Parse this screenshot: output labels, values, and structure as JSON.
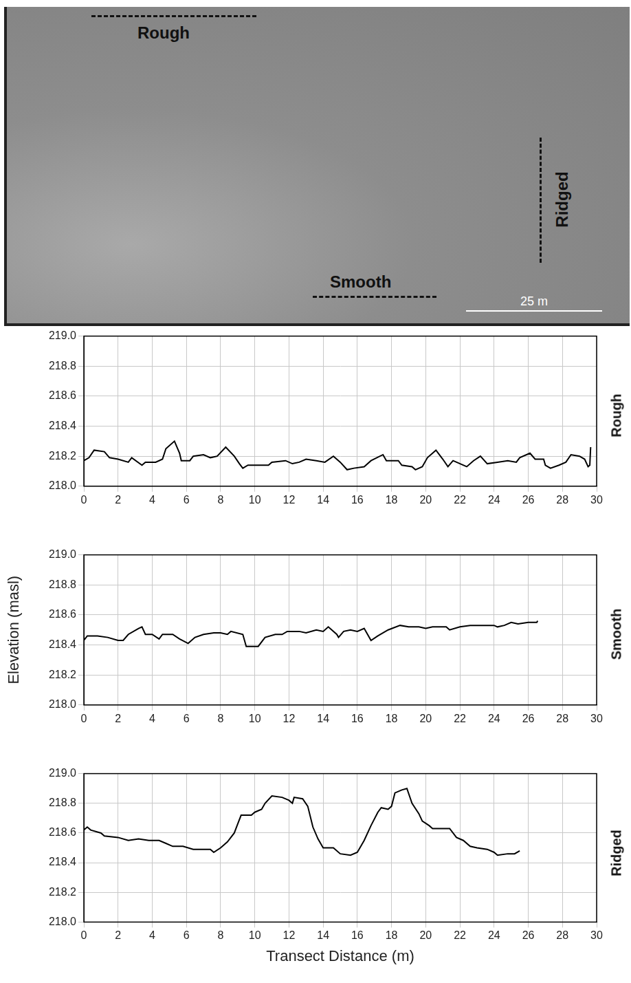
{
  "image": {
    "labels": [
      "Rough",
      "Smooth",
      "Ridged"
    ],
    "scale_bar": "25 m"
  },
  "chart_data": [
    {
      "type": "line",
      "panel_label": "Rough",
      "color": "#000000",
      "grid": true,
      "xlim": [
        0,
        30
      ],
      "xticks": [
        0,
        2,
        4,
        6,
        8,
        10,
        12,
        14,
        16,
        18,
        20,
        22,
        24,
        26,
        28,
        30
      ],
      "ylim": [
        218,
        219
      ],
      "yticks": [
        {
          "value": 218,
          "label": "218.0"
        },
        218.2,
        218.4,
        218.6,
        218.8,
        {
          "value": 219,
          "label": "219.0"
        }
      ],
      "x": [
        0,
        0.3,
        0.6,
        1.2,
        1.5,
        2,
        2.6,
        2.8,
        3.4,
        3.6,
        4.2,
        4.6,
        4.8,
        5.3,
        5.6,
        5.7,
        6.2,
        6.4,
        7,
        7.4,
        7.8,
        8.3,
        8.8,
        9.1,
        9.3,
        9.6,
        10.2,
        10.8,
        11,
        11.8,
        12.2,
        12.6,
        13,
        13.6,
        14.1,
        14.6,
        15,
        15.4,
        15.8,
        16.4,
        16.8,
        17.5,
        17.7,
        18.4,
        18.6,
        19.2,
        19.4,
        19.8,
        20.1,
        20.6,
        21,
        21.3,
        21.6,
        22.4,
        22.8,
        23.2,
        23.6,
        24.2,
        24.8,
        25.3,
        25.5,
        26.1,
        26.4,
        26.9,
        27,
        27.3,
        27.8,
        28.2,
        28.5,
        29,
        29.3,
        29.5,
        29.6,
        29.65
      ],
      "values": [
        218.17,
        218.19,
        218.24,
        218.23,
        218.19,
        218.18,
        218.16,
        218.19,
        218.14,
        218.16,
        218.16,
        218.18,
        218.25,
        218.3,
        218.22,
        218.17,
        218.17,
        218.2,
        218.21,
        218.19,
        218.2,
        218.26,
        218.2,
        218.15,
        218.12,
        218.14,
        218.14,
        218.14,
        218.16,
        218.17,
        218.15,
        218.16,
        218.18,
        218.17,
        218.16,
        218.2,
        218.16,
        218.11,
        218.12,
        218.13,
        218.17,
        218.21,
        218.17,
        218.17,
        218.14,
        218.13,
        218.11,
        218.13,
        218.19,
        218.24,
        218.18,
        218.13,
        218.17,
        218.13,
        218.17,
        218.2,
        218.15,
        218.16,
        218.17,
        218.16,
        218.19,
        218.22,
        218.18,
        218.18,
        218.14,
        218.12,
        218.14,
        218.16,
        218.21,
        218.2,
        218.18,
        218.13,
        218.14,
        218.26
      ]
    },
    {
      "type": "line",
      "panel_label": "Smooth",
      "y_label": "Elevation (masl)",
      "color": "#000000",
      "grid": true,
      "xlim": [
        0,
        30
      ],
      "xticks": [
        0,
        2,
        4,
        6,
        8,
        10,
        12,
        14,
        16,
        18,
        20,
        22,
        24,
        26,
        28,
        30
      ],
      "ylim": [
        218,
        219
      ],
      "yticks": [
        {
          "value": 218,
          "label": "218.0"
        },
        218.2,
        218.4,
        218.6,
        218.8,
        {
          "value": 219,
          "label": "219.0"
        }
      ],
      "x": [
        0,
        0.2,
        0.8,
        1.4,
        2,
        2.3,
        2.6,
        3.2,
        3.4,
        3.6,
        4,
        4.4,
        4.6,
        5.2,
        5.6,
        6.1,
        6.5,
        7,
        7.6,
        8,
        8.4,
        8.6,
        9.3,
        9.5,
        10.2,
        10.6,
        11.2,
        11.6,
        11.9,
        12.6,
        13,
        13.6,
        14,
        14.3,
        14.8,
        14.9,
        15.2,
        15.6,
        16,
        16.4,
        16.8,
        17.2,
        17.8,
        18.5,
        19,
        19.6,
        20,
        20.4,
        21.2,
        21.4,
        22,
        22.6,
        23,
        24,
        24.2,
        24.6,
        25,
        25.4,
        26,
        26.5,
        26.55
      ],
      "values": [
        218.43,
        218.46,
        218.46,
        218.45,
        218.43,
        218.43,
        218.47,
        218.51,
        218.52,
        218.47,
        218.47,
        218.44,
        218.47,
        218.47,
        218.44,
        218.41,
        218.45,
        218.47,
        218.48,
        218.48,
        218.47,
        218.49,
        218.47,
        218.39,
        218.39,
        218.45,
        218.47,
        218.47,
        218.49,
        218.49,
        218.48,
        218.5,
        218.49,
        218.52,
        218.47,
        218.45,
        218.49,
        218.5,
        218.49,
        218.51,
        218.43,
        218.46,
        218.5,
        218.53,
        218.52,
        218.52,
        218.51,
        218.52,
        218.52,
        218.5,
        218.52,
        218.53,
        218.53,
        218.53,
        218.52,
        218.53,
        218.55,
        218.54,
        218.55,
        218.55,
        218.56
      ]
    },
    {
      "type": "line",
      "panel_label": "Ridged",
      "x_label": "Transect Distance (m)",
      "color": "#000000",
      "grid": true,
      "xlim": [
        0,
        30
      ],
      "xticks": [
        0,
        2,
        4,
        6,
        8,
        10,
        12,
        14,
        16,
        18,
        20,
        22,
        24,
        26,
        28,
        30
      ],
      "ylim": [
        218,
        219
      ],
      "yticks": [
        {
          "value": 218,
          "label": "218.0"
        },
        218.2,
        218.4,
        218.6,
        218.8,
        {
          "value": 219,
          "label": "219.0"
        }
      ],
      "x": [
        0,
        0.2,
        0.4,
        1,
        1.2,
        2,
        2.6,
        3.2,
        3.8,
        4.4,
        4.8,
        5.2,
        5.8,
        6.4,
        7,
        7.4,
        7.6,
        8,
        8.4,
        8.8,
        9,
        9.2,
        9.8,
        10,
        10.4,
        10.6,
        11,
        11.6,
        12,
        12.2,
        12.3,
        12.8,
        13.1,
        13.4,
        13.7,
        14,
        14.6,
        15,
        15.6,
        16,
        16.4,
        16.8,
        17.2,
        17.4,
        17.8,
        18,
        18.2,
        18.6,
        18.9,
        19.2,
        19.6,
        19.8,
        20.2,
        20.4,
        21,
        21.4,
        21.8,
        22.2,
        22.6,
        23,
        23.6,
        24,
        24.2,
        24.8,
        25.2,
        25.5
      ],
      "values": [
        218.62,
        218.64,
        218.62,
        218.6,
        218.58,
        218.57,
        218.55,
        218.56,
        218.55,
        218.55,
        218.53,
        218.51,
        218.51,
        218.49,
        218.49,
        218.49,
        218.47,
        218.5,
        218.54,
        218.6,
        218.66,
        218.72,
        218.72,
        218.74,
        218.76,
        218.8,
        218.85,
        218.84,
        218.82,
        218.8,
        218.84,
        218.83,
        218.78,
        218.64,
        218.56,
        218.5,
        218.5,
        218.46,
        218.45,
        218.47,
        218.55,
        218.65,
        218.74,
        218.77,
        218.76,
        218.78,
        218.87,
        218.89,
        218.9,
        218.8,
        218.73,
        218.68,
        218.65,
        218.63,
        218.63,
        218.63,
        218.57,
        218.55,
        218.51,
        218.5,
        218.49,
        218.47,
        218.45,
        218.46,
        218.46,
        218.48
      ]
    }
  ]
}
